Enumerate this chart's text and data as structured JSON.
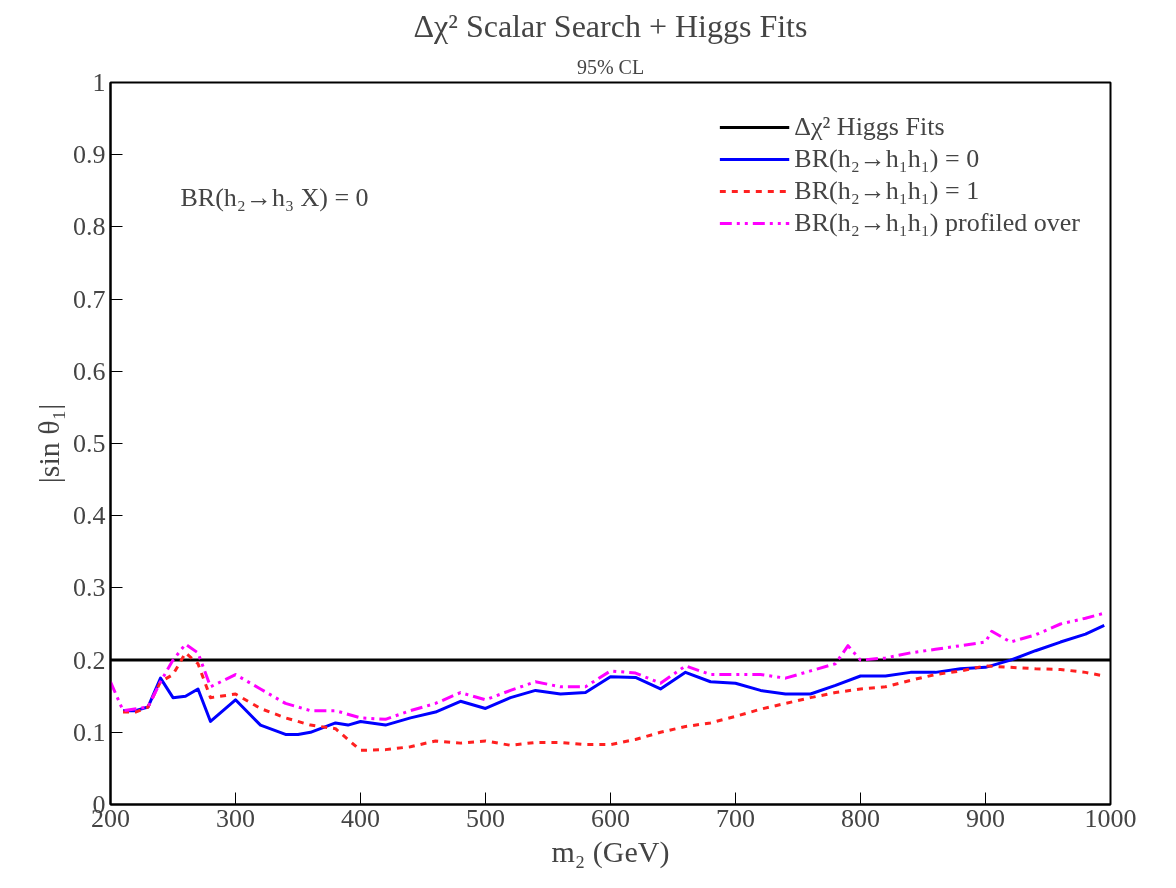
{
  "chart_data": {
    "type": "line",
    "title": "Δχ² Scalar Search + Higgs Fits",
    "subtitle": "95% CL",
    "xlabel": "m₂ (GeV)",
    "ylabel": "|sin θ₁|",
    "xlim": [
      200,
      1000
    ],
    "xticks": [
      200,
      300,
      400,
      500,
      600,
      700,
      800,
      900,
      1000
    ],
    "ylim": [
      0,
      1
    ],
    "yticks": [
      0,
      0.1,
      0.2,
      0.3,
      0.4,
      0.5,
      0.6,
      0.7,
      0.8,
      0.9,
      1
    ],
    "grid": false,
    "legend": "top right",
    "marker": "none",
    "annotations": [
      "BR(h₂→h₃ X) = 0"
    ],
    "series": [
      {
        "name": "Δχ² Higgs Fits",
        "color": "#000000",
        "line_style": "solid",
        "x": [
          200,
          1000
        ],
        "values": [
          0.2,
          0.2
        ]
      },
      {
        "name": "BR(h₂→h₁h₁) = 0",
        "color": "#0000ff",
        "line_style": "solid",
        "x": [
          210,
          220,
          230,
          240,
          250,
          260,
          270,
          280,
          300,
          320,
          340,
          350,
          360,
          380,
          390,
          400,
          420,
          440,
          460,
          480,
          500,
          520,
          540,
          560,
          580,
          600,
          620,
          640,
          660,
          680,
          700,
          720,
          740,
          760,
          780,
          800,
          820,
          840,
          860,
          880,
          900,
          920,
          940,
          960,
          980,
          995
        ],
        "values": [
          0.13,
          0.13,
          0.135,
          0.175,
          0.148,
          0.15,
          0.16,
          0.115,
          0.145,
          0.11,
          0.097,
          0.097,
          0.1,
          0.113,
          0.11,
          0.115,
          0.11,
          0.12,
          0.128,
          0.143,
          0.133,
          0.148,
          0.158,
          0.153,
          0.155,
          0.177,
          0.176,
          0.16,
          0.183,
          0.17,
          0.168,
          0.158,
          0.153,
          0.153,
          0.165,
          0.178,
          0.178,
          0.183,
          0.183,
          0.188,
          0.19,
          0.2,
          0.213,
          0.225,
          0.236,
          0.248
        ]
      },
      {
        "name": "BR(h₂→h₁h₁) = 1",
        "color": "#ff2020",
        "line_style": "dashed",
        "x": [
          210,
          220,
          230,
          240,
          250,
          260,
          270,
          280,
          300,
          320,
          340,
          360,
          380,
          400,
          420,
          440,
          460,
          480,
          500,
          520,
          540,
          560,
          580,
          600,
          620,
          640,
          660,
          680,
          700,
          720,
          740,
          760,
          780,
          800,
          820,
          840,
          860,
          880,
          900,
          920,
          940,
          960,
          980,
          995
        ],
        "values": [
          0.128,
          0.128,
          0.135,
          0.17,
          0.18,
          0.21,
          0.195,
          0.148,
          0.153,
          0.133,
          0.12,
          0.11,
          0.105,
          0.075,
          0.076,
          0.08,
          0.088,
          0.085,
          0.088,
          0.082,
          0.086,
          0.086,
          0.083,
          0.083,
          0.09,
          0.1,
          0.108,
          0.113,
          0.122,
          0.132,
          0.14,
          0.148,
          0.155,
          0.16,
          0.163,
          0.172,
          0.18,
          0.185,
          0.192,
          0.19,
          0.188,
          0.187,
          0.183,
          0.178
        ]
      },
      {
        "name": "BR(h₂→h₁h₁) profiled over",
        "color": "#ff00ff",
        "line_style": "dashdotdot",
        "x": [
          200,
          210,
          230,
          240,
          250,
          260,
          270,
          280,
          300,
          320,
          340,
          360,
          380,
          400,
          420,
          440,
          460,
          480,
          500,
          520,
          540,
          560,
          580,
          600,
          620,
          640,
          660,
          680,
          700,
          720,
          740,
          760,
          780,
          790,
          800,
          820,
          840,
          860,
          880,
          900,
          905,
          920,
          940,
          960,
          980,
          995
        ],
        "values": [
          0.17,
          0.13,
          0.135,
          0.17,
          0.2,
          0.222,
          0.21,
          0.163,
          0.18,
          0.16,
          0.14,
          0.13,
          0.13,
          0.12,
          0.118,
          0.13,
          0.14,
          0.155,
          0.145,
          0.158,
          0.17,
          0.163,
          0.163,
          0.185,
          0.182,
          0.168,
          0.192,
          0.18,
          0.18,
          0.18,
          0.175,
          0.185,
          0.195,
          0.22,
          0.2,
          0.203,
          0.21,
          0.215,
          0.22,
          0.225,
          0.24,
          0.225,
          0.235,
          0.25,
          0.258,
          0.265
        ]
      }
    ]
  }
}
